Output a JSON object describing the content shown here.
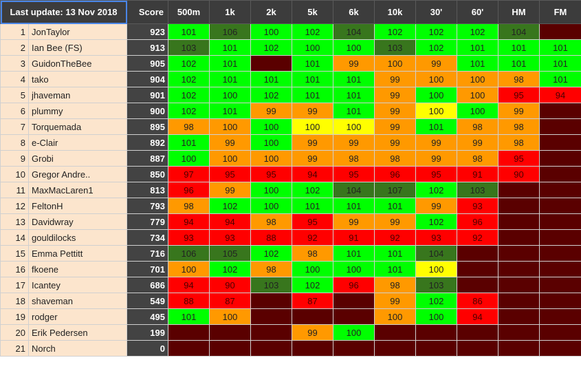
{
  "header": {
    "update_label": "Last update: 13 Nov 2018",
    "score_label": "Score",
    "events": [
      "500m",
      "1k",
      "2k",
      "5k",
      "6k",
      "10k",
      "30'",
      "60'",
      "HM",
      "FM"
    ]
  },
  "colors": {
    "dark_green": "#38761d",
    "green": "#00ff00",
    "orange": "#ff9900",
    "yellow": "#ffff00",
    "red": "#ff0000",
    "empty_maroon": "#5a0000",
    "name_bg": "#fce5cd",
    "score_bg": "#434343"
  },
  "rows": [
    {
      "rank": "1",
      "name": "JonTaylor",
      "score": "923",
      "cells": [
        [
          "101",
          "g"
        ],
        [
          "106",
          "dg"
        ],
        [
          "100",
          "g"
        ],
        [
          "102",
          "g"
        ],
        [
          "104",
          "dg"
        ],
        [
          "102",
          "g"
        ],
        [
          "102",
          "g"
        ],
        [
          "102",
          "g"
        ],
        [
          "104",
          "dg"
        ],
        [
          "",
          "e"
        ]
      ]
    },
    {
      "rank": "2",
      "name": "Ian Bee (FS)",
      "score": "913",
      "cells": [
        [
          "103",
          "dg"
        ],
        [
          "101",
          "g"
        ],
        [
          "102",
          "g"
        ],
        [
          "100",
          "g"
        ],
        [
          "100",
          "g"
        ],
        [
          "103",
          "dg"
        ],
        [
          "102",
          "g"
        ],
        [
          "101",
          "g"
        ],
        [
          "101",
          "g"
        ],
        [
          "101",
          "g"
        ]
      ]
    },
    {
      "rank": "3",
      "name": "GuidonTheBee",
      "score": "905",
      "cells": [
        [
          "102",
          "g"
        ],
        [
          "101",
          "g"
        ],
        [
          "",
          "e"
        ],
        [
          "101",
          "g"
        ],
        [
          "99",
          "o"
        ],
        [
          "100",
          "o"
        ],
        [
          "99",
          "o"
        ],
        [
          "101",
          "g"
        ],
        [
          "101",
          "g"
        ],
        [
          "101",
          "g"
        ]
      ]
    },
    {
      "rank": "4",
      "name": "tako",
      "score": "904",
      "cells": [
        [
          "102",
          "g"
        ],
        [
          "101",
          "g"
        ],
        [
          "101",
          "g"
        ],
        [
          "101",
          "g"
        ],
        [
          "101",
          "g"
        ],
        [
          "99",
          "o"
        ],
        [
          "100",
          "o"
        ],
        [
          "100",
          "o"
        ],
        [
          "98",
          "o"
        ],
        [
          "101",
          "g"
        ]
      ]
    },
    {
      "rank": "5",
      "name": "jhaveman",
      "score": "901",
      "cells": [
        [
          "102",
          "g"
        ],
        [
          "100",
          "g"
        ],
        [
          "102",
          "g"
        ],
        [
          "101",
          "g"
        ],
        [
          "101",
          "g"
        ],
        [
          "99",
          "o"
        ],
        [
          "100",
          "g"
        ],
        [
          "100",
          "o"
        ],
        [
          "95",
          "r"
        ],
        [
          "94",
          "r"
        ]
      ]
    },
    {
      "rank": "6",
      "name": "plummy",
      "score": "900",
      "cells": [
        [
          "102",
          "g"
        ],
        [
          "101",
          "g"
        ],
        [
          "99",
          "o"
        ],
        [
          "99",
          "o"
        ],
        [
          "101",
          "g"
        ],
        [
          "99",
          "o"
        ],
        [
          "100",
          "y"
        ],
        [
          "100",
          "g"
        ],
        [
          "99",
          "o"
        ],
        [
          "",
          "e"
        ]
      ]
    },
    {
      "rank": "7",
      "name": "Torquemada",
      "score": "895",
      "cells": [
        [
          "98",
          "o"
        ],
        [
          "100",
          "o"
        ],
        [
          "100",
          "g"
        ],
        [
          "100",
          "y"
        ],
        [
          "100",
          "y"
        ],
        [
          "99",
          "o"
        ],
        [
          "101",
          "g"
        ],
        [
          "98",
          "o"
        ],
        [
          "98",
          "o"
        ],
        [
          "",
          "e"
        ]
      ]
    },
    {
      "rank": "8",
      "name": "e-Clair",
      "score": "892",
      "cells": [
        [
          "101",
          "g"
        ],
        [
          "99",
          "o"
        ],
        [
          "100",
          "g"
        ],
        [
          "99",
          "o"
        ],
        [
          "99",
          "o"
        ],
        [
          "99",
          "o"
        ],
        [
          "99",
          "o"
        ],
        [
          "99",
          "o"
        ],
        [
          "98",
          "o"
        ],
        [
          "",
          "e"
        ]
      ]
    },
    {
      "rank": "9",
      "name": "Grobi",
      "score": "887",
      "cells": [
        [
          "100",
          "g"
        ],
        [
          "100",
          "o"
        ],
        [
          "100",
          "o"
        ],
        [
          "99",
          "o"
        ],
        [
          "98",
          "o"
        ],
        [
          "98",
          "o"
        ],
        [
          "99",
          "o"
        ],
        [
          "98",
          "o"
        ],
        [
          "95",
          "r"
        ],
        [
          "",
          "e"
        ]
      ]
    },
    {
      "rank": "10",
      "name": "Gregor Andre..",
      "score": "850",
      "cells": [
        [
          "97",
          "r"
        ],
        [
          "95",
          "r"
        ],
        [
          "95",
          "r"
        ],
        [
          "94",
          "r"
        ],
        [
          "95",
          "r"
        ],
        [
          "96",
          "r"
        ],
        [
          "95",
          "r"
        ],
        [
          "91",
          "r"
        ],
        [
          "90",
          "r"
        ],
        [
          "",
          "e"
        ]
      ]
    },
    {
      "rank": "11",
      "name": "MaxMacLaren1",
      "score": "813",
      "cells": [
        [
          "96",
          "r"
        ],
        [
          "99",
          "o"
        ],
        [
          "100",
          "g"
        ],
        [
          "102",
          "g"
        ],
        [
          "104",
          "dg"
        ],
        [
          "107",
          "dg"
        ],
        [
          "102",
          "g"
        ],
        [
          "103",
          "dg"
        ],
        [
          "",
          "e"
        ],
        [
          "",
          "e"
        ]
      ]
    },
    {
      "rank": "12",
      "name": "FeltonH",
      "score": "793",
      "cells": [
        [
          "98",
          "o"
        ],
        [
          "102",
          "g"
        ],
        [
          "100",
          "g"
        ],
        [
          "101",
          "g"
        ],
        [
          "101",
          "g"
        ],
        [
          "101",
          "g"
        ],
        [
          "99",
          "o"
        ],
        [
          "93",
          "r"
        ],
        [
          "",
          "e"
        ],
        [
          "",
          "e"
        ]
      ]
    },
    {
      "rank": "13",
      "name": "Davidwray",
      "score": "779",
      "cells": [
        [
          "94",
          "r"
        ],
        [
          "94",
          "r"
        ],
        [
          "98",
          "o"
        ],
        [
          "95",
          "r"
        ],
        [
          "99",
          "o"
        ],
        [
          "99",
          "o"
        ],
        [
          "102",
          "g"
        ],
        [
          "96",
          "r"
        ],
        [
          "",
          "e"
        ],
        [
          "",
          "e"
        ]
      ]
    },
    {
      "rank": "14",
      "name": "gouldilocks",
      "score": "734",
      "cells": [
        [
          "93",
          "r"
        ],
        [
          "93",
          "r"
        ],
        [
          "88",
          "r"
        ],
        [
          "92",
          "r"
        ],
        [
          "91",
          "r"
        ],
        [
          "92",
          "r"
        ],
        [
          "93",
          "r"
        ],
        [
          "92",
          "r"
        ],
        [
          "",
          "e"
        ],
        [
          "",
          "e"
        ]
      ]
    },
    {
      "rank": "15",
      "name": "Emma Pettitt",
      "score": "716",
      "cells": [
        [
          "106",
          "dg"
        ],
        [
          "105",
          "dg"
        ],
        [
          "102",
          "g"
        ],
        [
          "98",
          "o"
        ],
        [
          "101",
          "g"
        ],
        [
          "101",
          "g"
        ],
        [
          "104",
          "dg"
        ],
        [
          "",
          "e"
        ],
        [
          "",
          "e"
        ],
        [
          "",
          "e"
        ]
      ]
    },
    {
      "rank": "16",
      "name": "fkoene",
      "score": "701",
      "cells": [
        [
          "100",
          "o"
        ],
        [
          "102",
          "g"
        ],
        [
          "98",
          "o"
        ],
        [
          "100",
          "g"
        ],
        [
          "100",
          "g"
        ],
        [
          "101",
          "g"
        ],
        [
          "100",
          "y"
        ],
        [
          "",
          "e"
        ],
        [
          "",
          "e"
        ],
        [
          "",
          "e"
        ]
      ]
    },
    {
      "rank": "17",
      "name": "Icantey",
      "score": "686",
      "cells": [
        [
          "94",
          "r"
        ],
        [
          "90",
          "r"
        ],
        [
          "103",
          "dg"
        ],
        [
          "102",
          "g"
        ],
        [
          "96",
          "r"
        ],
        [
          "98",
          "o"
        ],
        [
          "103",
          "dg"
        ],
        [
          "",
          "e"
        ],
        [
          "",
          "e"
        ],
        [
          "",
          "e"
        ]
      ]
    },
    {
      "rank": "18",
      "name": "shaveman",
      "score": "549",
      "cells": [
        [
          "88",
          "r"
        ],
        [
          "87",
          "r"
        ],
        [
          "",
          "e"
        ],
        [
          "87",
          "r"
        ],
        [
          "",
          "e"
        ],
        [
          "99",
          "o"
        ],
        [
          "102",
          "g"
        ],
        [
          "86",
          "r"
        ],
        [
          "",
          "e"
        ],
        [
          "",
          "e"
        ]
      ]
    },
    {
      "rank": "19",
      "name": "rodger",
      "score": "495",
      "cells": [
        [
          "101",
          "g"
        ],
        [
          "100",
          "o"
        ],
        [
          "",
          "e"
        ],
        [
          "",
          "e"
        ],
        [
          "",
          "e"
        ],
        [
          "100",
          "o"
        ],
        [
          "100",
          "g"
        ],
        [
          "94",
          "r"
        ],
        [
          "",
          "e"
        ],
        [
          "",
          "e"
        ]
      ]
    },
    {
      "rank": "20",
      "name": "Erik Pedersen",
      "score": "199",
      "cells": [
        [
          "",
          "e"
        ],
        [
          "",
          "e"
        ],
        [
          "",
          "e"
        ],
        [
          "99",
          "o"
        ],
        [
          "100",
          "g"
        ],
        [
          "",
          "e"
        ],
        [
          "",
          "e"
        ],
        [
          "",
          "e"
        ],
        [
          "",
          "e"
        ],
        [
          "",
          "e"
        ]
      ]
    },
    {
      "rank": "21",
      "name": "Norch",
      "score": "0",
      "cells": [
        [
          "",
          "e"
        ],
        [
          "",
          "e"
        ],
        [
          "",
          "e"
        ],
        [
          "",
          "e"
        ],
        [
          "",
          "e"
        ],
        [
          "",
          "e"
        ],
        [
          "",
          "e"
        ],
        [
          "",
          "e"
        ],
        [
          "",
          "e"
        ],
        [
          "",
          "e"
        ]
      ]
    }
  ]
}
